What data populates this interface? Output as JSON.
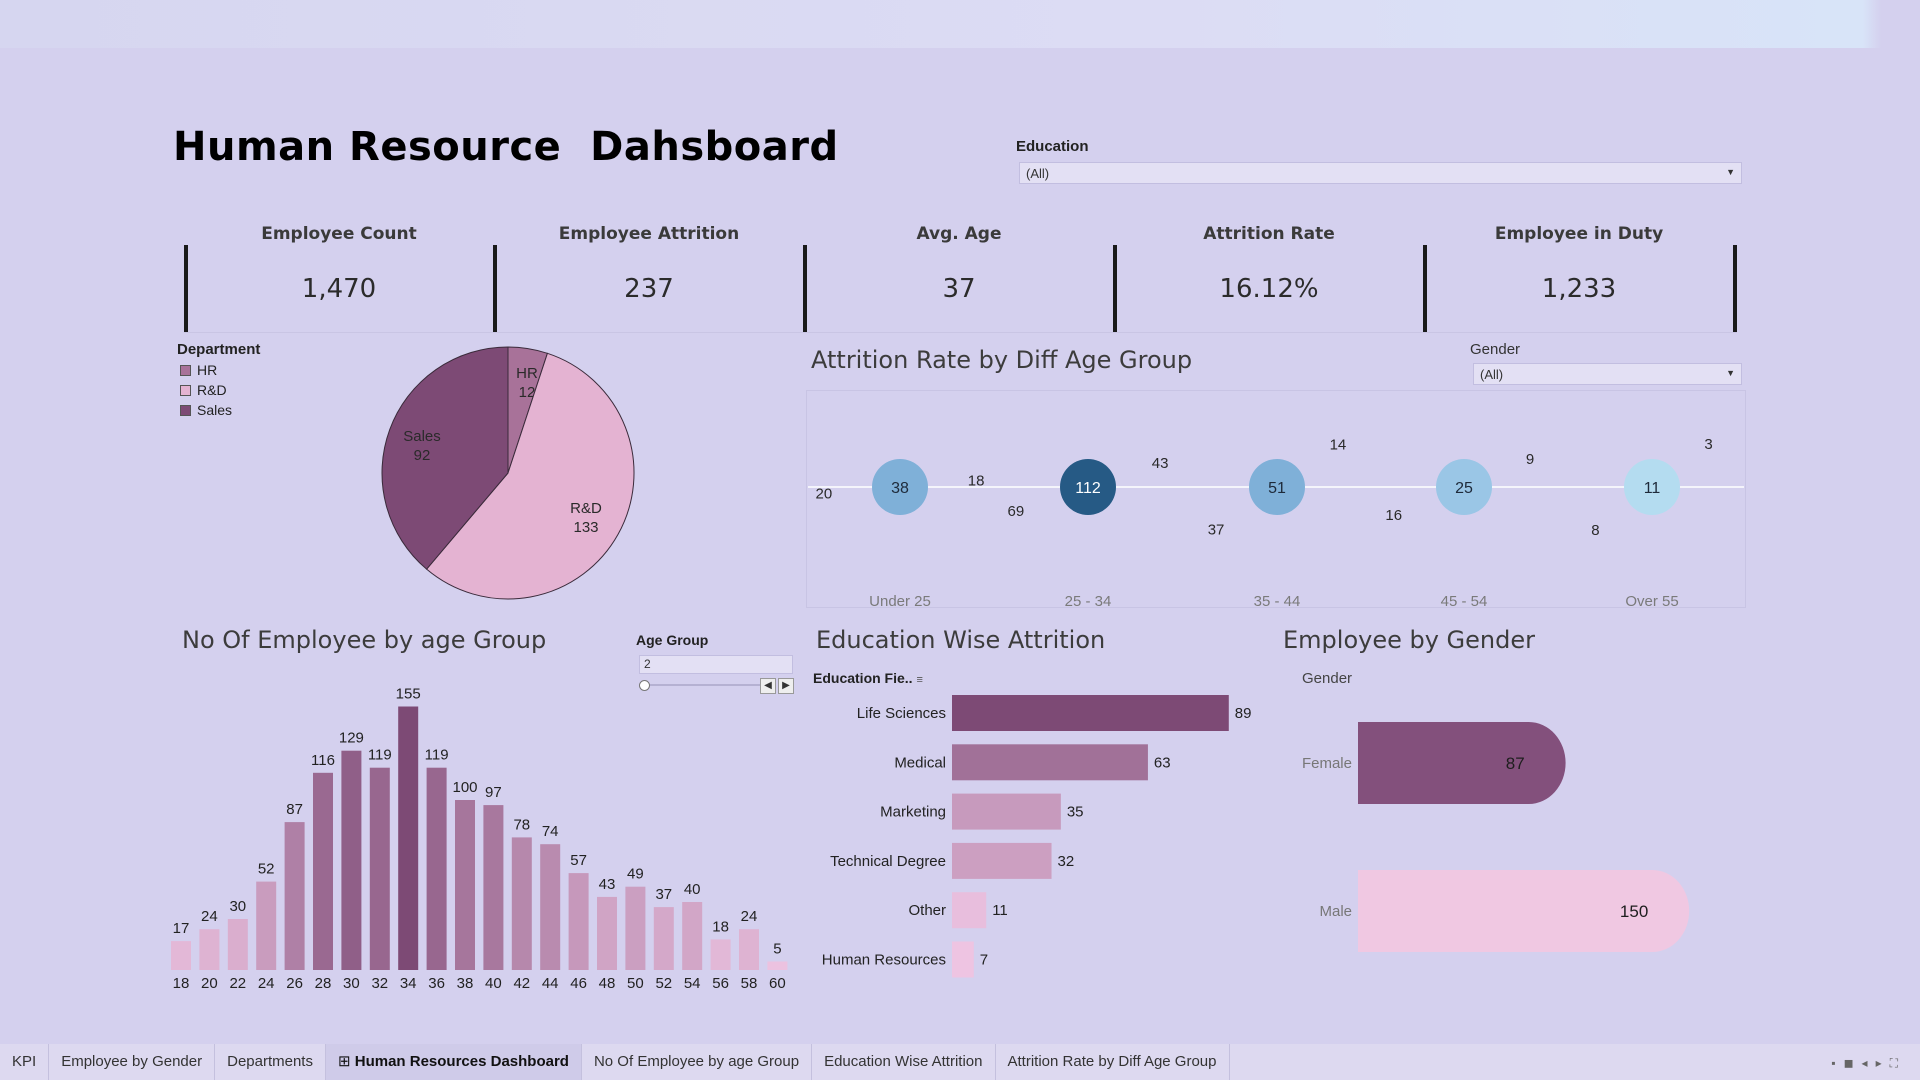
{
  "dashboard": {
    "title": "Human Resource  Dahsboard"
  },
  "filters": {
    "education": {
      "label": "Education",
      "value": "(All)"
    },
    "gender": {
      "label": "Gender",
      "value": "(All)"
    },
    "age_group": {
      "label": "Age Group",
      "value": "2"
    }
  },
  "kpis": [
    {
      "label": "Employee Count",
      "value": "1,470"
    },
    {
      "label": "Employee Attrition",
      "value": "237"
    },
    {
      "label": "Avg. Age",
      "value": "37"
    },
    {
      "label": "Attrition Rate",
      "value": "16.12%"
    },
    {
      "label": "Employee in Duty",
      "value": "1,233"
    }
  ],
  "department_legend": {
    "title": "Department",
    "items": [
      {
        "label": "HR",
        "color": "#a87299"
      },
      {
        "label": "R&D",
        "color": "#e4b3d2"
      },
      {
        "label": "Sales",
        "color": "#7d4a75"
      }
    ]
  },
  "sections": {
    "attrition_age": "Attrition Rate by Diff Age Group",
    "employees_age": "No Of Employee by age Group",
    "education": "Education Wise Attrition",
    "gender": "Employee by Gender"
  },
  "education_header": "Education Fie..",
  "gender_header": "Gender",
  "chart_data": [
    {
      "type": "pie",
      "categories": [
        "HR",
        "R&D",
        "Sales"
      ],
      "values": [
        12,
        133,
        92
      ],
      "colors": [
        "#a87299",
        "#e4b3d2",
        "#7d4a75"
      ]
    },
    {
      "type": "pie",
      "categories": [
        "Under 25",
        "25 - 34",
        "35 - 44",
        "45 - 54",
        "Over 55"
      ],
      "center_values": [
        38,
        112,
        51,
        25,
        11
      ],
      "series": [
        {
          "values": [
            18,
            43,
            14,
            9,
            3
          ],
          "color": "#86507f"
        },
        {
          "values": [
            20,
            69,
            37,
            16,
            8
          ],
          "color": "#efc6e2"
        }
      ],
      "center_colors": [
        "#7fb0d8",
        "#265a85",
        "#7fb0d8",
        "#9ac6e6",
        "#b4dcf0"
      ]
    },
    {
      "type": "bar",
      "categories": [
        "18",
        "20",
        "22",
        "24",
        "26",
        "28",
        "30",
        "32",
        "34",
        "36",
        "38",
        "40",
        "42",
        "44",
        "46",
        "48",
        "50",
        "52",
        "54",
        "56",
        "58",
        "60"
      ],
      "values": [
        17,
        24,
        30,
        52,
        87,
        116,
        129,
        119,
        155,
        119,
        100,
        97,
        78,
        74,
        57,
        43,
        49,
        37,
        40,
        18,
        24,
        5
      ]
    },
    {
      "type": "bar",
      "orientation": "horizontal",
      "categories": [
        "Life Sciences",
        "Medical",
        "Marketing",
        "Technical Degree",
        "Other",
        "Human Resources"
      ],
      "values": [
        89,
        63,
        35,
        32,
        11,
        7
      ]
    },
    {
      "type": "bar",
      "orientation": "horizontal",
      "categories": [
        "Female",
        "Male"
      ],
      "values": [
        87,
        150
      ],
      "colors": [
        "#83507c",
        "#f0c8e2"
      ]
    }
  ],
  "tabs": [
    {
      "label": "KPI",
      "active": false
    },
    {
      "label": "Employee by Gender",
      "active": false
    },
    {
      "label": "Departments",
      "active": false
    },
    {
      "label": "Human Resources Dashboard",
      "active": true
    },
    {
      "label": "No Of Employee by age Group",
      "active": false
    },
    {
      "label": "Education Wise Attrition",
      "active": false
    },
    {
      "label": "Attrition Rate by Diff Age Group",
      "active": false
    }
  ]
}
